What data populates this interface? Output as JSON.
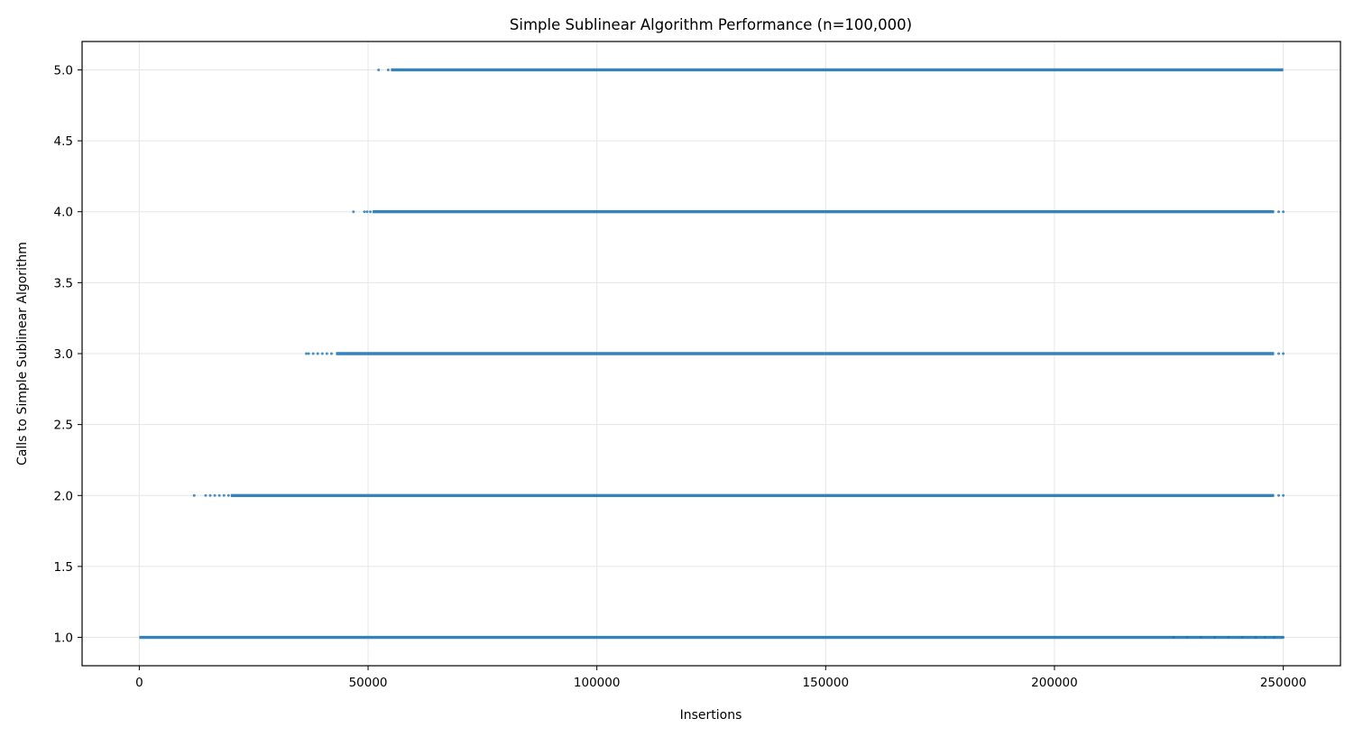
{
  "chart_data": {
    "type": "scatter",
    "title": "Simple Sublinear Algorithm Performance (n=100,000)",
    "xlabel": "Insertions",
    "ylabel": "Calls to Simple Sublinear Algorithm",
    "xlim": [
      -12500,
      262500
    ],
    "ylim": [
      0.8,
      5.2
    ],
    "xticks": [
      0,
      50000,
      100000,
      150000,
      200000,
      250000
    ],
    "xtick_labels": [
      "0",
      "50000",
      "100000",
      "150000",
      "200000",
      "250000"
    ],
    "yticks": [
      1.0,
      1.5,
      2.0,
      2.5,
      3.0,
      3.5,
      4.0,
      4.5,
      5.0
    ],
    "ytick_labels": [
      "1.0",
      "1.5",
      "2.0",
      "2.5",
      "3.0",
      "3.5",
      "4.0",
      "4.5",
      "5.0"
    ],
    "grid": true,
    "marker_color": "#1f77b4",
    "series": [
      {
        "y": 1.0,
        "dense_range": [
          0,
          250000
        ],
        "sparse_points": [
          226000,
          229000,
          232000,
          235000,
          238000,
          241000,
          244000,
          246000,
          248000,
          250000
        ]
      },
      {
        "y": 2.0,
        "dense_range": [
          20000,
          248000
        ],
        "sparse_points": [
          12000,
          14500,
          15500,
          16500,
          17500,
          18500,
          19500,
          249000,
          250000
        ]
      },
      {
        "y": 3.0,
        "dense_range": [
          43000,
          248000
        ],
        "sparse_points": [
          36500,
          37000,
          38000,
          39000,
          40000,
          41000,
          42000,
          249000,
          250000
        ]
      },
      {
        "y": 4.0,
        "dense_range": [
          51000,
          248000
        ],
        "sparse_points": [
          46800,
          49200,
          49800,
          50500,
          249000,
          250000
        ]
      },
      {
        "y": 5.0,
        "dense_range": [
          55000,
          250000
        ],
        "sparse_points": [
          52300,
          54400
        ]
      }
    ]
  }
}
